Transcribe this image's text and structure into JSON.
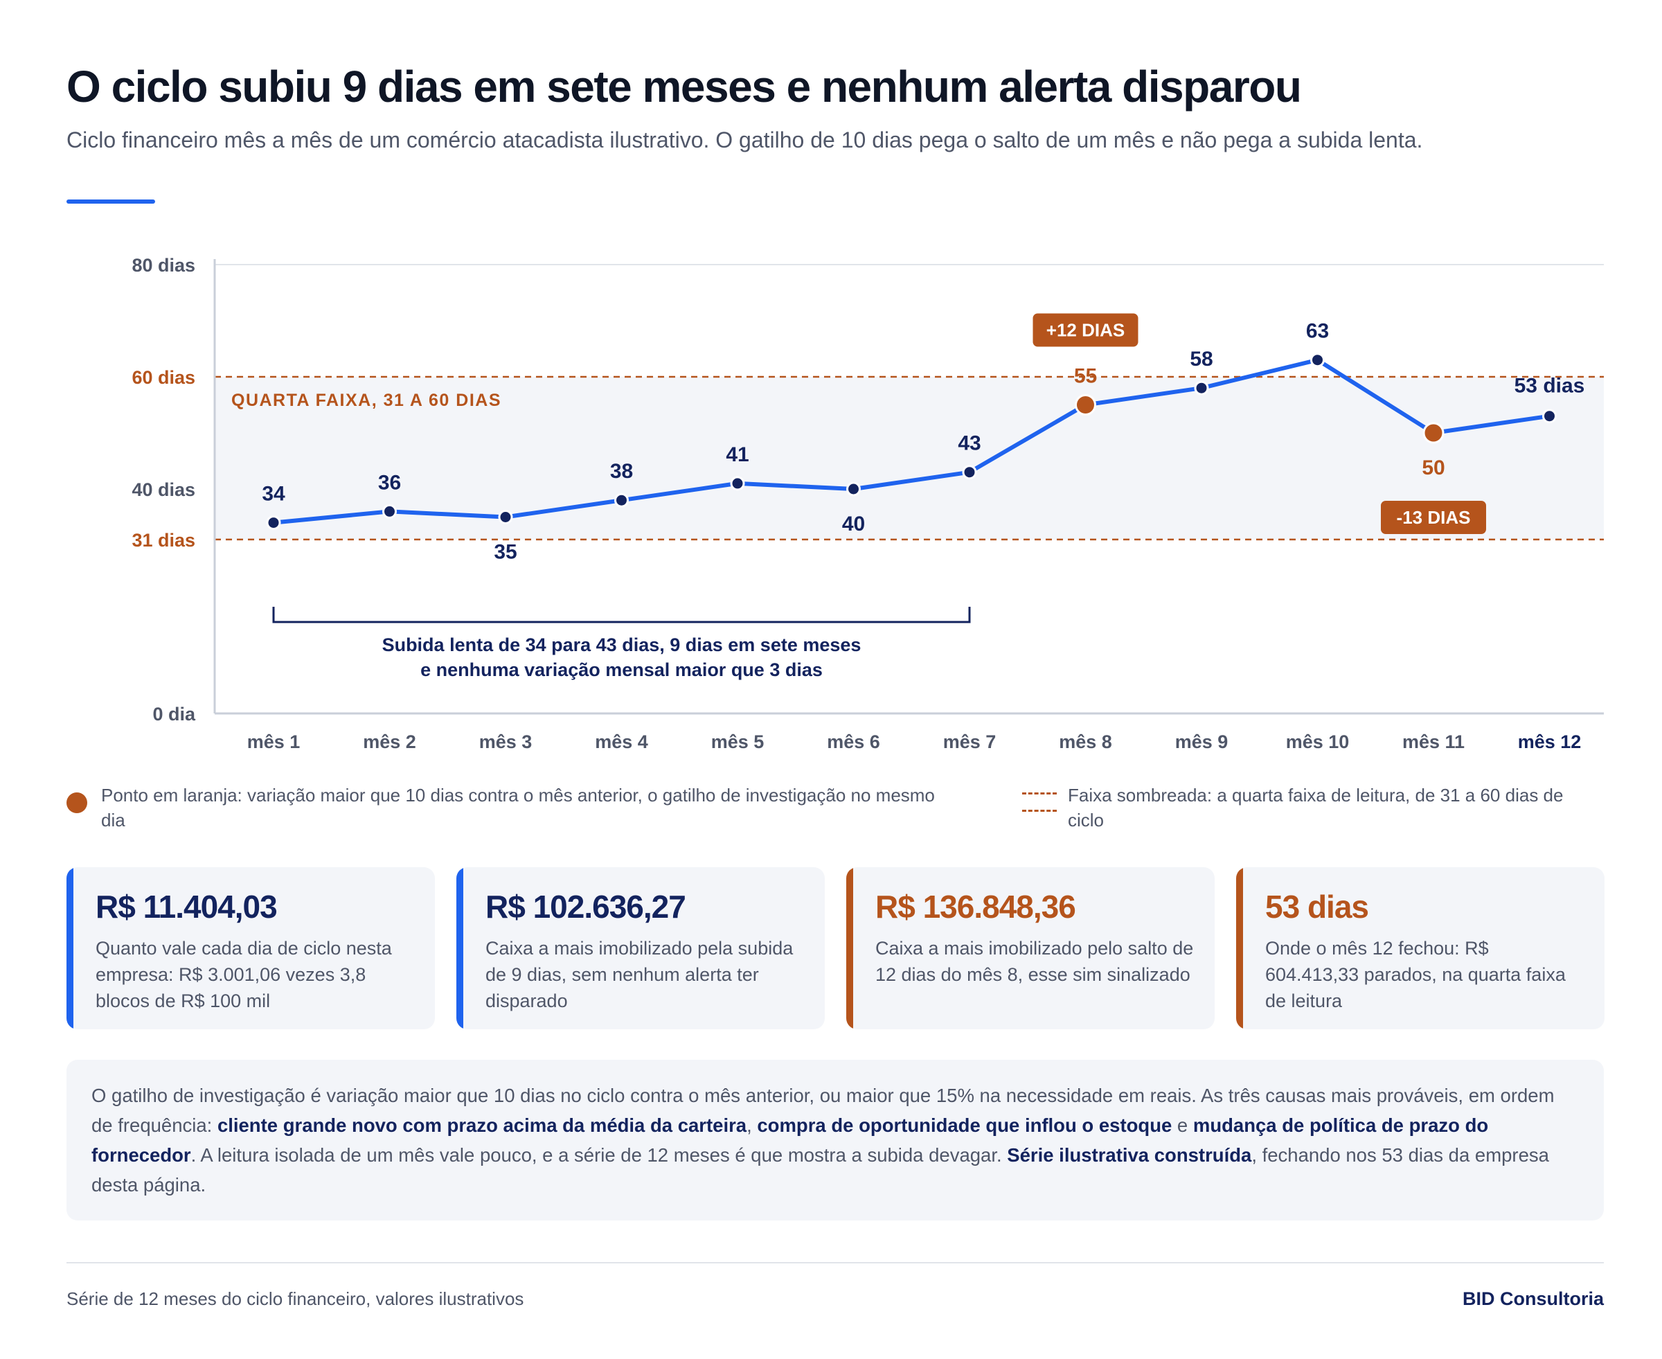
{
  "header": {
    "title": "O ciclo subiu 9 dias em sete meses e nenhum alerta disparou",
    "subtitle": "Ciclo financeiro mês a mês de um comércio atacadista ilustrativo. O gatilho de 10 dias pega o salto de um mês e não pega a subida lenta."
  },
  "chart_data": {
    "type": "line",
    "categories": [
      "mês 1",
      "mês 2",
      "mês 3",
      "mês 4",
      "mês 5",
      "mês 6",
      "mês 7",
      "mês 8",
      "mês 9",
      "mês 10",
      "mês 11",
      "mês 12"
    ],
    "series": [
      {
        "values": [
          34,
          36,
          35,
          38,
          41,
          40,
          43,
          55,
          58,
          63,
          50,
          53
        ]
      }
    ],
    "value_labels": [
      "34",
      "36",
      "35",
      "38",
      "41",
      "40",
      "43",
      "55",
      "58",
      "63",
      "50",
      "53 dias"
    ],
    "highlighted_points": [
      7,
      10
    ],
    "yticks": [
      {
        "value": 0,
        "label": "0 dia"
      },
      {
        "value": 31,
        "label": "31 dias",
        "highlight": true
      },
      {
        "value": 40,
        "label": "40 dias"
      },
      {
        "value": 60,
        "label": "60 dias",
        "highlight": true
      },
      {
        "value": 80,
        "label": "80 dias"
      }
    ],
    "ylim": [
      0,
      80
    ],
    "band": {
      "from": 31,
      "to": 60,
      "label": "QUARTA FAIXA, 31 A 60 DIAS"
    },
    "badges": [
      {
        "index": 7,
        "text": "+12 DIAS",
        "placement": "above"
      },
      {
        "index": 10,
        "text": "-13 DIAS",
        "placement": "below"
      }
    ],
    "bracket": {
      "from_index": 0,
      "to_index": 6,
      "lines": [
        "Subida lenta de 34 para 43 dias, 9 dias em sete meses",
        "e nenhuma variação mensal maior que 3 dias"
      ]
    },
    "colors": {
      "line": "#1f63ee",
      "point": "#13235e",
      "alert": "#b5541c",
      "band": "#f3f5f9",
      "axis": "#c9cfd9",
      "grid": "#e1e4ea"
    }
  },
  "legend": {
    "dot_text": "Ponto em laranja: variação maior que 10 dias contra o mês anterior, o gatilho de investigação no mesmo dia",
    "band_text": "Faixa sombreada: a quarta faixa de leitura, de 31 a 60 dias de ciclo"
  },
  "cards": [
    {
      "value": "R$ 11.404,03",
      "desc": "Quanto vale cada dia de ciclo nesta empresa: R$ 3.001,06 vezes 3,8 blocos de R$ 100 mil",
      "accent": "blue"
    },
    {
      "value": "R$ 102.636,27",
      "desc": "Caixa a mais imobilizado pela subida de 9 dias, sem nenhum alerta ter disparado",
      "accent": "blue"
    },
    {
      "value": "R$ 136.848,36",
      "desc": "Caixa a mais imobilizado pelo salto de 12 dias do mês 8, esse sim sinalizado",
      "accent": "orange"
    },
    {
      "value": "53 dias",
      "desc": "Onde o mês 12 fechou: R$ 604.413,33 parados, na quarta faixa de leitura",
      "accent": "orange"
    }
  ],
  "note": {
    "part1": "O gatilho de investigação é variação maior que 10 dias no ciclo contra o mês anterior, ou maior que 15% na necessidade em reais. As três causas mais prováveis, em ordem de frequência: ",
    "bold1": "cliente grande novo com prazo acima da média da carteira",
    "sep1": ", ",
    "bold2": "compra de oportunidade que inflou o estoque",
    "sep2": " e ",
    "bold3": "mudança de política de prazo do fornecedor",
    "part2": ". A leitura isolada de um mês vale pouco, e a série de 12 meses é que mostra a subida devagar. ",
    "bold4": "Série ilustrativa construída",
    "part3": ", fechando nos 53 dias da empresa desta página."
  },
  "footer": {
    "source": "Série de 12 meses do ciclo financeiro, valores ilustrativos",
    "brand": "BID Consultoria"
  }
}
